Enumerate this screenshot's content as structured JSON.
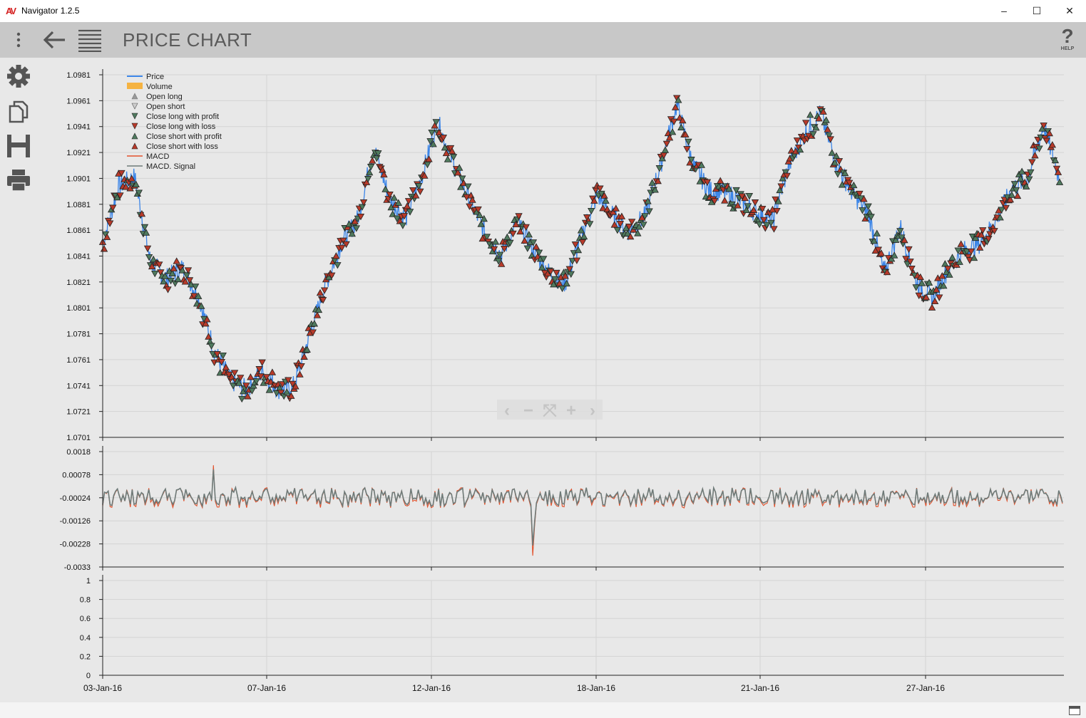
{
  "window": {
    "app_name": "Navigator 1.2.5",
    "logo": "AV",
    "minimize": "–",
    "maximize": "☐",
    "close": "✕"
  },
  "toolbar": {
    "menu_icon": "kebab-menu-icon",
    "back_icon": "back-arrow-icon",
    "list_icon": "list-icon",
    "page_title": "PRICE CHART",
    "help_label": "HELP"
  },
  "sidebar": {
    "items": [
      {
        "name": "settings",
        "icon": "gear-icon"
      },
      {
        "name": "copy",
        "icon": "copy-icon"
      },
      {
        "name": "save",
        "icon": "save-icon"
      },
      {
        "name": "print",
        "icon": "print-icon"
      }
    ]
  },
  "colors": {
    "price": "#3d86e8",
    "volume": "#f5b342",
    "open": "#999999",
    "profit": "#4f7a5e",
    "loss": "#b83a2a",
    "macd": "#e2502a",
    "signal": "#6e7a78",
    "grid": "#d4d4d4",
    "plot_bg": "#e8e8e8"
  },
  "chart_data": [
    {
      "type": "line",
      "title": "",
      "ylim": [
        1.0701,
        1.0981
      ],
      "y_ticks": [
        "1.0981",
        "1.0961",
        "1.0941",
        "1.0921",
        "1.0901",
        "1.0881",
        "1.0861",
        "1.0841",
        "1.0821",
        "1.0801",
        "1.0781",
        "1.0761",
        "1.0741",
        "1.0721",
        "1.0701"
      ],
      "x_ticks": [
        "03-Jan-16",
        "07-Jan-16",
        "12-Jan-16",
        "18-Jan-16",
        "21-Jan-16",
        "27-Jan-16"
      ],
      "legend": [
        "Price",
        "Volume",
        "Open long",
        "Open short",
        "Close long with profit",
        "Close long with loss",
        "Close short with profit",
        "Close short with loss",
        "MACD",
        "MACD. Signal"
      ],
      "legend_position": "top-left",
      "series": [
        {
          "name": "Price",
          "x_index": [
            0,
            2,
            4,
            6,
            8,
            10,
            12,
            14,
            16,
            18,
            20,
            22,
            24,
            26,
            28,
            30,
            32,
            34,
            36,
            38,
            40,
            42,
            44,
            46,
            48,
            50,
            52,
            54,
            56,
            58,
            60,
            62,
            64,
            66,
            68,
            70,
            72,
            74,
            76,
            78,
            80,
            82,
            84,
            86,
            88,
            90,
            92,
            94,
            96,
            98,
            100,
            102,
            104,
            106,
            108,
            110,
            112,
            114,
            116,
            118,
            120
          ],
          "values": [
            1.0851,
            1.0895,
            1.0902,
            1.0836,
            1.0824,
            1.0832,
            1.081,
            1.0768,
            1.0745,
            1.0738,
            1.0752,
            1.0738,
            1.0741,
            1.0781,
            1.082,
            1.0852,
            1.087,
            1.0925,
            1.0885,
            1.087,
            1.0902,
            1.0945,
            1.0912,
            1.0885,
            1.0858,
            1.0842,
            1.0868,
            1.0845,
            1.0828,
            1.082,
            1.0856,
            1.0888,
            1.0872,
            1.086,
            1.0872,
            1.0912,
            1.0958,
            1.0912,
            1.0892,
            1.089,
            1.0884,
            1.0874,
            1.0868,
            1.091,
            1.0935,
            1.0951,
            1.0912,
            1.089,
            1.0874,
            1.0828,
            1.0864,
            1.0822,
            1.0808,
            1.0831,
            1.0845,
            1.0851,
            1.0868,
            1.0893,
            1.0901,
            1.0942,
            1.09
          ]
        }
      ]
    },
    {
      "type": "line",
      "title": "",
      "ylim": [
        -0.0033,
        0.0018
      ],
      "y_ticks": [
        "0.0018",
        "0.00078",
        "-0.00024",
        "-0.00126",
        "-0.00228",
        "-0.0033"
      ],
      "series": [
        {
          "name": "MACD",
          "values": []
        },
        {
          "name": "MACD. Signal",
          "values": []
        }
      ]
    },
    {
      "type": "line",
      "title": "",
      "ylim": [
        0,
        1
      ],
      "y_ticks": [
        "1",
        "0.8",
        "0.6",
        "0.4",
        "0.2",
        "0"
      ],
      "series": []
    }
  ],
  "nav_controls": [
    "‹",
    "−",
    "⤧",
    "+",
    "›"
  ]
}
